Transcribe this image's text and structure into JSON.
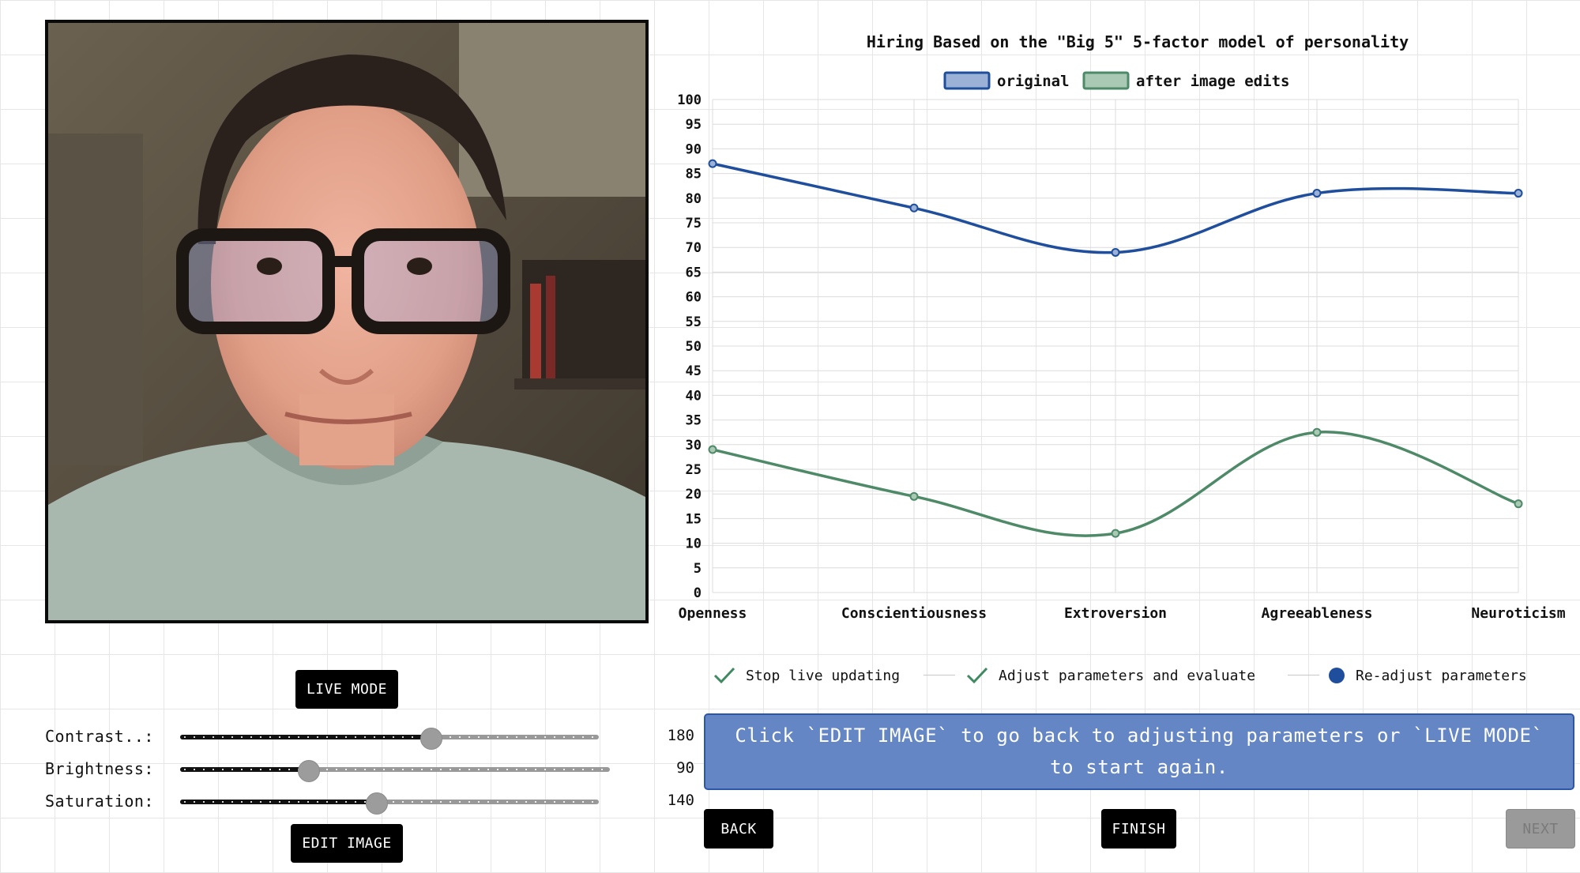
{
  "photo": {
    "alt": "webcam-portrait"
  },
  "buttons": {
    "live_mode": "LIVE MODE",
    "edit_image": "EDIT IMAGE",
    "back": "BACK",
    "finish": "FINISH",
    "next": "NEXT"
  },
  "sliders": [
    {
      "label": "Contrast..:",
      "value": "180",
      "level": 0.6
    },
    {
      "label": "Brightness:",
      "value": "90",
      "level": 0.3
    },
    {
      "label": "Saturation:",
      "value": "140",
      "level": 0.47
    }
  ],
  "steps": [
    {
      "label": "Stop live updating",
      "status": "done"
    },
    {
      "label": "Adjust parameters and evaluate",
      "status": "done"
    },
    {
      "label": "Re-adjust parameters",
      "status": "current"
    }
  ],
  "info_message": "Click `EDIT IMAGE` to go back to adjusting parameters or `LIVE MODE` to start again.",
  "colors": {
    "original": "#1f4e9c",
    "original_fill": "#9bb1d6",
    "edited": "#4e8a68",
    "edited_fill": "#a9c9b4",
    "step_check": "#3f8a60",
    "step_current": "#1f4e9c",
    "info_bg": "#6486c4"
  },
  "chart_data": {
    "type": "line",
    "title": "Hiring Based on the \"Big 5\" 5-factor model of personality",
    "categories": [
      "Openness",
      "Conscientiousness",
      "Extroversion",
      "Agreeableness",
      "Neuroticism"
    ],
    "series": [
      {
        "name": "original",
        "values": [
          87,
          78,
          69,
          81,
          81
        ]
      },
      {
        "name": "after image edits",
        "values": [
          29,
          19.5,
          12,
          32.5,
          18
        ]
      }
    ],
    "ylim": [
      0,
      100
    ],
    "yticks": [
      0,
      5,
      10,
      15,
      20,
      25,
      30,
      35,
      40,
      45,
      50,
      55,
      60,
      65,
      70,
      75,
      80,
      85,
      90,
      95,
      100
    ],
    "legend_position": "top-center",
    "grid": true,
    "curve": "smooth"
  }
}
